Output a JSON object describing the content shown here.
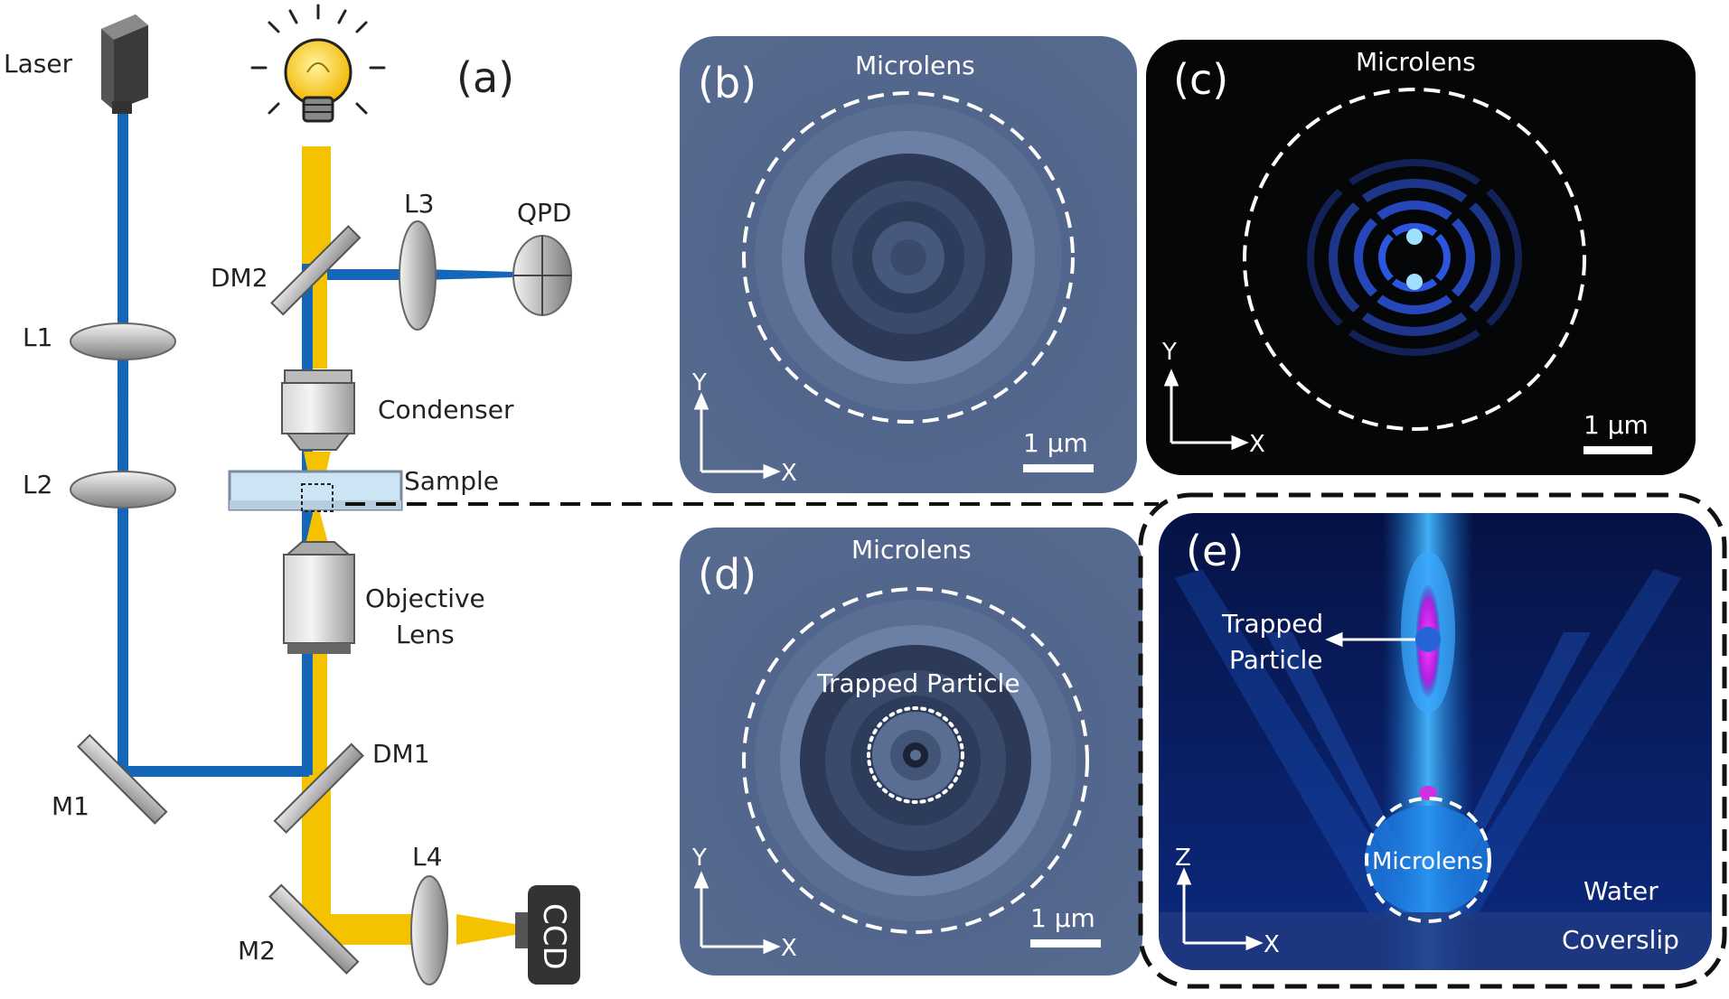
{
  "panel_a": {
    "tag": "(a)",
    "laser": "Laser",
    "l1": "L1",
    "l2": "L2",
    "l3": "L3",
    "l4": "L4",
    "dm1": "DM1",
    "dm2": "DM2",
    "m1": "M1",
    "m2": "M2",
    "qpd": "QPD",
    "condenser": "Condenser",
    "sample": "Sample",
    "objective_line1": "Objective",
    "objective_line2": "Lens",
    "ccd": "CCD"
  },
  "panel_b": {
    "tag": "(b)",
    "title": "Microlens",
    "axis_y": "Y",
    "axis_x": "X",
    "scale": "1 µm"
  },
  "panel_c": {
    "tag": "(c)",
    "title": "Microlens",
    "axis_y": "Y",
    "axis_x": "X",
    "scale": "1 µm"
  },
  "panel_d": {
    "tag": "(d)",
    "title": "Microlens",
    "inner": "Trapped Particle",
    "axis_y": "Y",
    "axis_x": "X",
    "scale": "1 µm"
  },
  "panel_e": {
    "tag": "(e)",
    "trapped_line1": "Trapped",
    "trapped_line2": "Particle",
    "microlens": "Microlens",
    "water": "Water",
    "coverslip": "Coverslip",
    "axis_z": "Z",
    "axis_x": "X"
  },
  "colors": {
    "laser_beam": "#1565b8",
    "light_beam": "#f5c200",
    "bright_panel": "#4f6389",
    "dark_panel": "#050608",
    "sim_panel": "#0a1a5a"
  }
}
